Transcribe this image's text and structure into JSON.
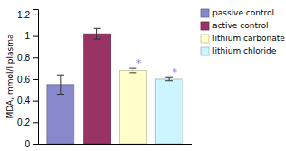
{
  "chart_data": {
    "type": "bar",
    "categories": [
      "passive control",
      "active control",
      "lithium carbonate",
      "lithium chloride"
    ],
    "values": [
      0.55,
      1.02,
      0.68,
      0.6
    ],
    "errors": [
      0.09,
      0.05,
      0.02,
      0.015
    ],
    "colors": [
      "#8888cc",
      "#993366",
      "#ffffcc",
      "#ccf5ff"
    ],
    "ylabel": "MDA, mmol/l plasma",
    "ylim": [
      0.0,
      1.25
    ],
    "yticks": [
      0.0,
      0.2,
      0.4,
      0.6,
      0.8,
      1.0,
      1.2
    ],
    "legend": "upper right",
    "tick_labels": "y",
    "annotations": [
      {
        "text": "*",
        "category": "lithium carbonate",
        "color": "#8888cc"
      },
      {
        "text": "*",
        "category": "lithium chloride",
        "color": "#8888cc"
      }
    ]
  }
}
